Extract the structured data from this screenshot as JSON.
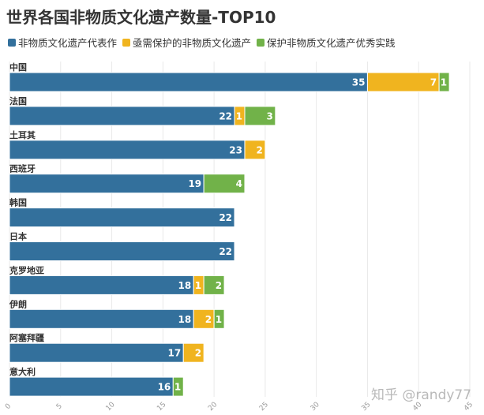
{
  "chart_data": {
    "type": "bar",
    "orientation": "horizontal",
    "stacked": true,
    "title": "世界各国非物质文化遗产数量-TOP10",
    "categories": [
      "中国",
      "法国",
      "土耳其",
      "西班牙",
      "韩国",
      "日本",
      "克罗地亚",
      "伊朗",
      "阿塞拜疆",
      "意大利"
    ],
    "series": [
      {
        "name": "非物质文化遗产代表作",
        "color": "#33709c",
        "values": [
          35,
          22,
          23,
          19,
          22,
          22,
          18,
          18,
          17,
          16
        ]
      },
      {
        "name": "亟需保护的非物质文化遗产",
        "color": "#f0b41f",
        "values": [
          7,
          1,
          2,
          0,
          0,
          0,
          1,
          2,
          2,
          0
        ]
      },
      {
        "name": "保护非物质文化遗产优秀实践",
        "color": "#71b249",
        "values": [
          1,
          3,
          0,
          4,
          0,
          0,
          2,
          1,
          0,
          1
        ]
      }
    ],
    "xlim": [
      0,
      45
    ],
    "xticks": [
      "0",
      "5",
      "10",
      "15",
      "20",
      "25",
      "30",
      "35",
      "40",
      "45"
    ],
    "grid": true,
    "legend_position": "top-left"
  },
  "watermark": "知乎 @randy77"
}
